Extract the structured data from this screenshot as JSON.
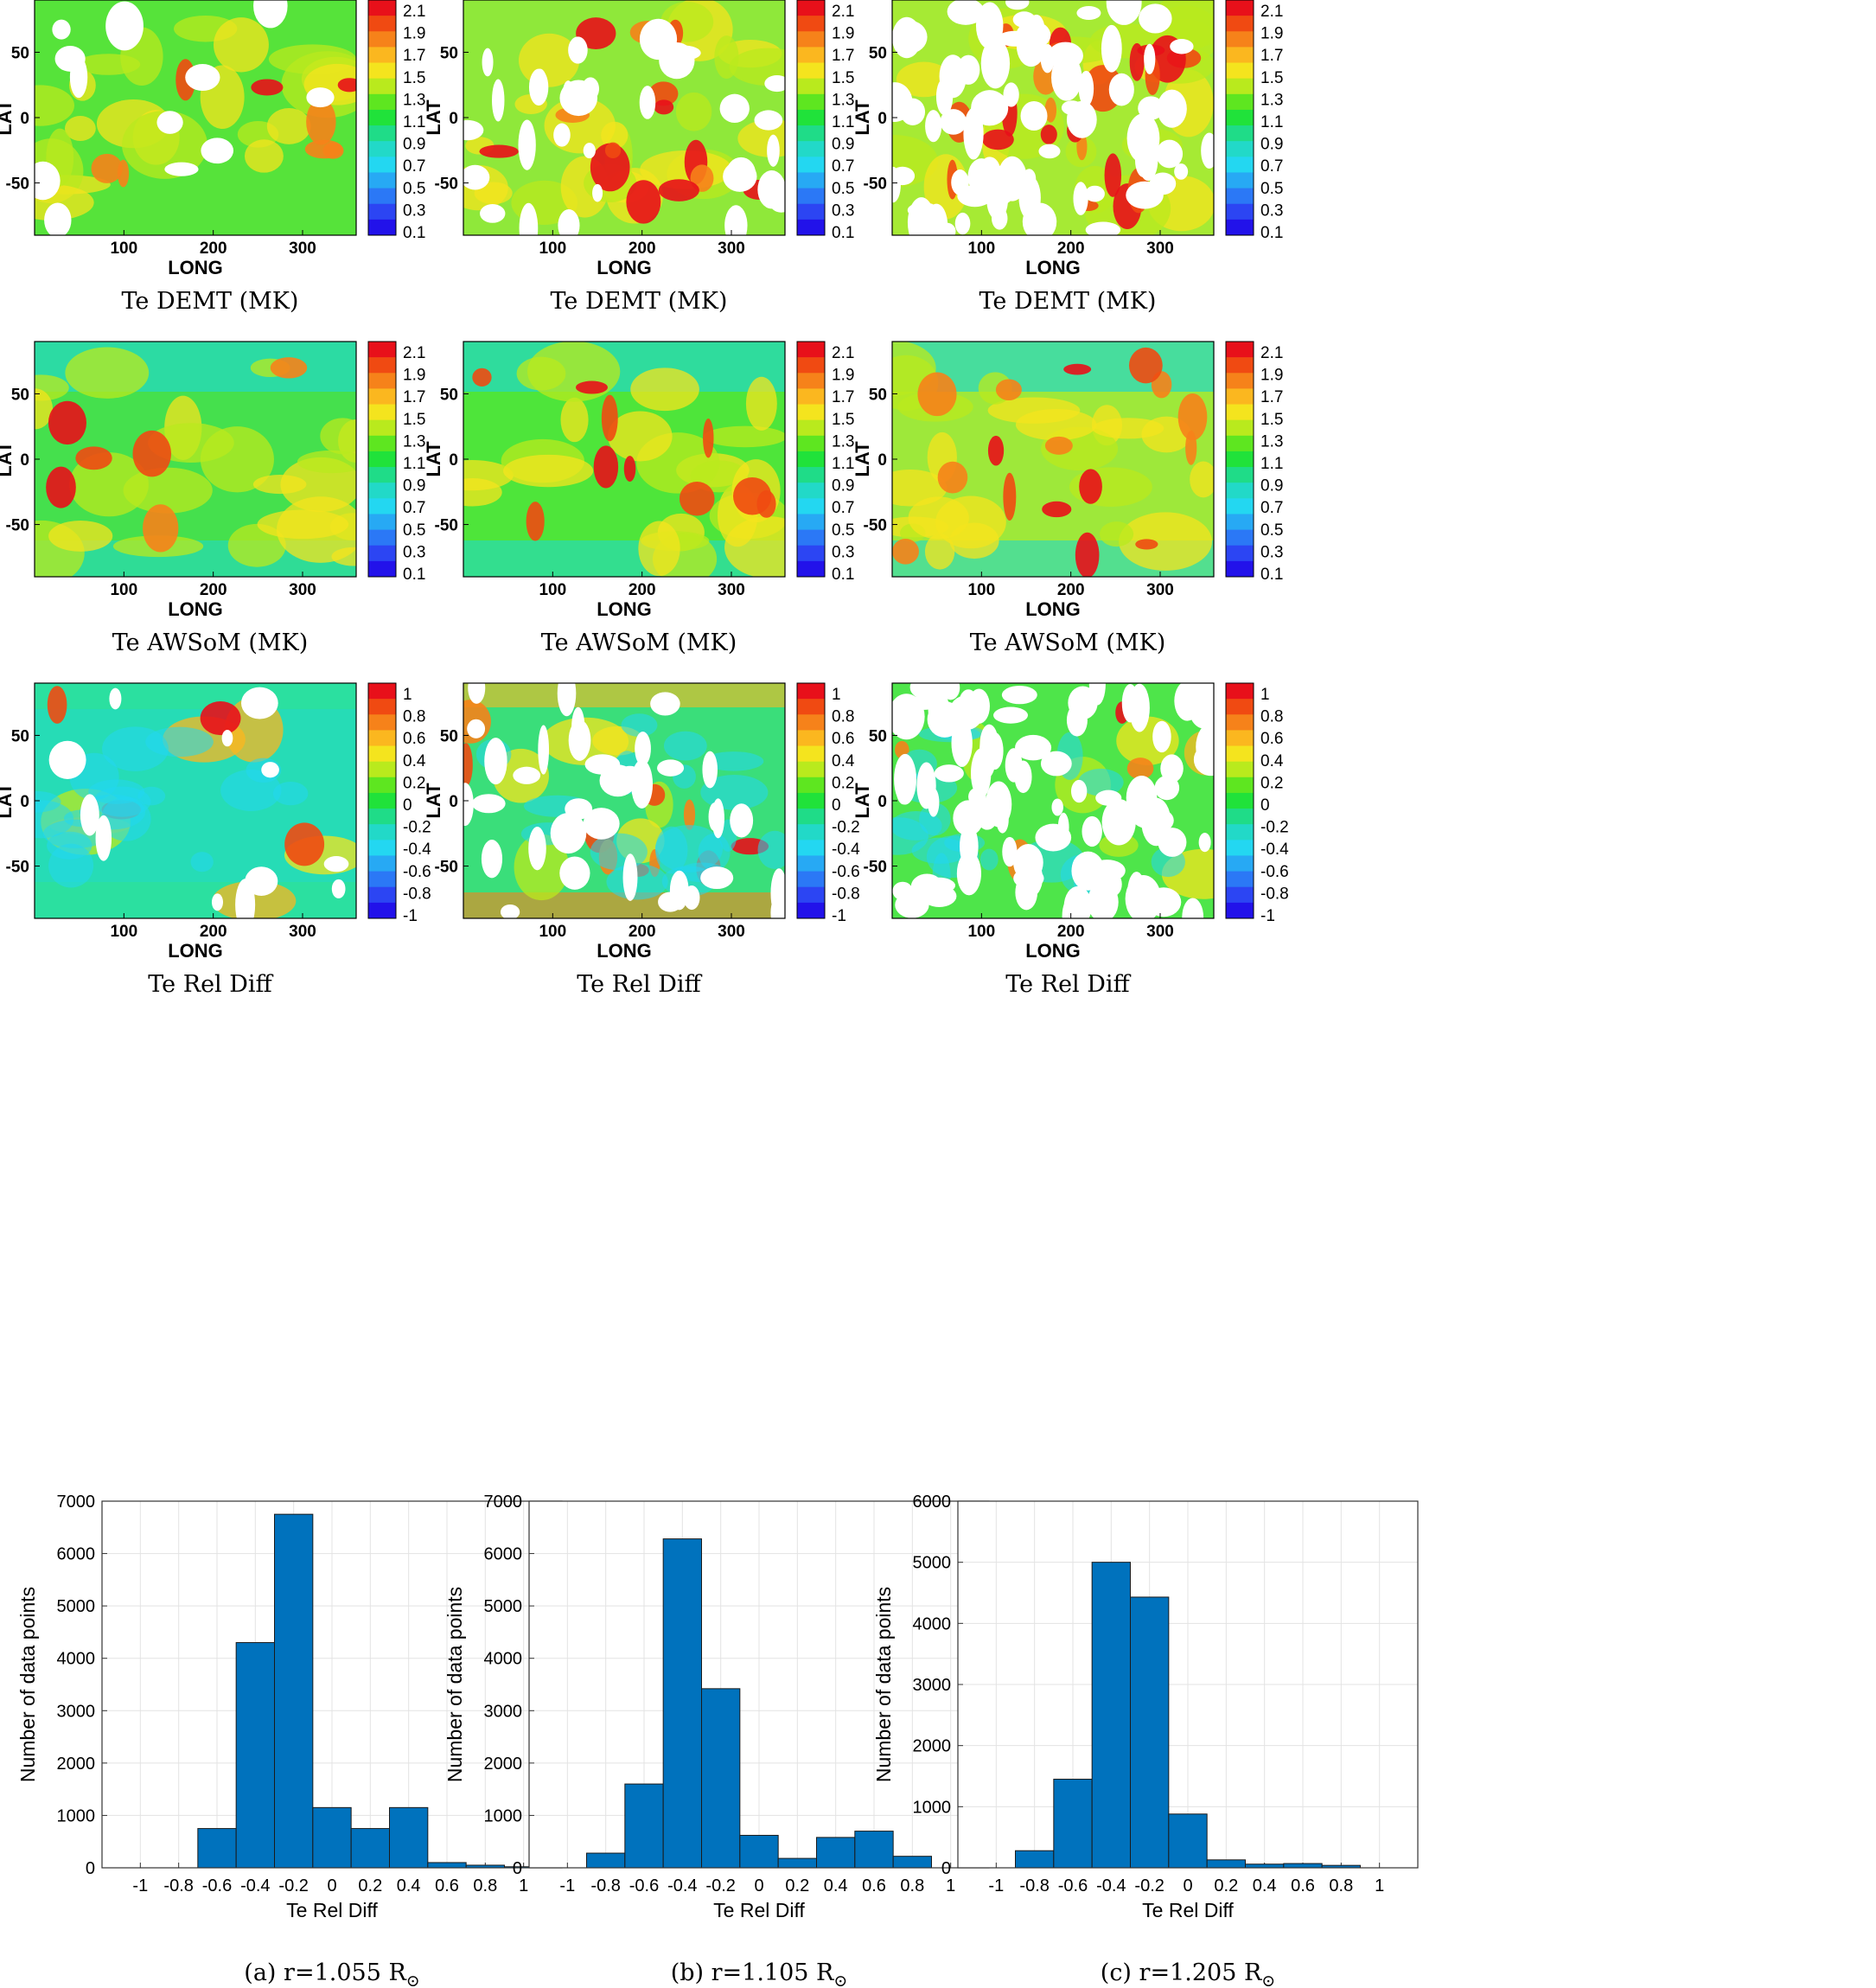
{
  "colorbars": {
    "temperature": {
      "levels": [
        "2.1",
        "1.9",
        "1.7",
        "1.5",
        "1.3",
        "1.1",
        "0.9",
        "0.7",
        "0.5",
        "0.3",
        "0.1"
      ],
      "colors": [
        "#e8101a",
        "#f04a12",
        "#f6821a",
        "#fbb71f",
        "#f4e41e",
        "#b9ea1d",
        "#5ee620",
        "#20e23a",
        "#1fdc88",
        "#22d9c8",
        "#23d7f1",
        "#27a9f4",
        "#2b78f6",
        "#2c45f3",
        "#2212ea"
      ]
    },
    "reldiff": {
      "levels": [
        "1",
        "0.8",
        "0.6",
        "0.4",
        "0.2",
        "0",
        "-0.2",
        "-0.4",
        "-0.6",
        "-0.8",
        "-1"
      ],
      "colors": [
        "#e8101a",
        "#f04a12",
        "#f6821a",
        "#fbb71f",
        "#f4e41e",
        "#b9ea1d",
        "#5ee620",
        "#20e23a",
        "#1fdc88",
        "#22d9c8",
        "#23d7f1",
        "#27a9f4",
        "#2b78f6",
        "#2c45f3",
        "#2212ea"
      ]
    }
  },
  "map_axes": {
    "xlabel": "LONG",
    "ylabel": "LAT",
    "xticks": [
      "100",
      "200",
      "300"
    ],
    "yticks": [
      "50",
      "0",
      "-50"
    ],
    "xlim": [
      0,
      360
    ],
    "ylim": [
      -90,
      90
    ]
  },
  "row_captions": [
    "Te DEMT (MK)",
    "Te AWSoM (MK)",
    "Te Rel Diff"
  ],
  "columns": [
    {
      "caption_pre": "(a) r=1.055 R",
      "sub": "⊙",
      "map_rows": [
        {
          "title": "Te DEMT (MK)",
          "bg": "#56e33a"
        },
        {
          "title": "Te AWSoM (MK)",
          "bg": "#45e04d"
        },
        {
          "title": "Te Rel Diff",
          "bg": "#2be0a0"
        }
      ]
    },
    {
      "caption_pre": "(b) r=1.105 R",
      "sub": "⊙",
      "map_rows": [
        {
          "title": "Te DEMT (MK)",
          "bg": "#8fe83a"
        },
        {
          "title": "Te AWSoM (MK)",
          "bg": "#4ee53a"
        },
        {
          "title": "Te Rel Diff",
          "bg": "#3ade7a"
        }
      ]
    },
    {
      "caption_pre": "(c) r=1.205 R",
      "sub": "⊙",
      "map_rows": [
        {
          "title": "Te DEMT (MK)",
          "bg": "#a6ea34"
        },
        {
          "title": "Te AWSoM (MK)",
          "bg": "#9ee83a"
        },
        {
          "title": "Te Rel Diff",
          "bg": "#4ee54a"
        }
      ]
    }
  ],
  "chart_data": [
    {
      "type": "bar",
      "title": "(a) r=1.055 R⊙",
      "xlabel": "Te Rel Diff",
      "ylabel": "Number of data points",
      "bin_edges": [
        -0.9,
        -0.7,
        -0.5,
        -0.3,
        -0.1,
        0.1,
        0.3,
        0.5,
        0.7,
        0.9,
        1.1
      ],
      "values": [
        0,
        750,
        4300,
        6750,
        1150,
        750,
        1150,
        100,
        50,
        20
      ],
      "xticks": [
        "-1",
        "-0.8",
        "-0.6",
        "-0.4",
        "-0.2",
        "0",
        "0.2",
        "0.4",
        "0.6",
        "0.8",
        "1"
      ],
      "xlim": [
        -1.2,
        1.2
      ],
      "ylim": [
        0,
        7000
      ],
      "yticks": [
        "0",
        "1000",
        "2000",
        "3000",
        "4000",
        "5000",
        "6000",
        "7000"
      ],
      "bar_color": "#0072bd",
      "grid": true
    },
    {
      "type": "bar",
      "title": "(b) r=1.105 R⊙",
      "xlabel": "Te Rel Diff",
      "ylabel": "Number of data points",
      "bin_edges": [
        -0.9,
        -0.7,
        -0.5,
        -0.3,
        -0.1,
        0.1,
        0.3,
        0.5,
        0.7,
        0.9,
        1.1
      ],
      "values": [
        280,
        1600,
        6280,
        3420,
        620,
        180,
        580,
        700,
        220,
        0
      ],
      "xticks": [
        "-1",
        "-0.8",
        "-0.6",
        "-0.4",
        "-0.2",
        "0",
        "0.2",
        "0.4",
        "0.6",
        "0.8",
        "1"
      ],
      "xlim": [
        -1.2,
        1.2
      ],
      "ylim": [
        0,
        7000
      ],
      "yticks": [
        "0",
        "1000",
        "2000",
        "3000",
        "4000",
        "5000",
        "6000",
        "7000"
      ],
      "bar_color": "#0072bd",
      "grid": true
    },
    {
      "type": "bar",
      "title": "(c) r=1.205 R⊙",
      "xlabel": "Te Rel Diff",
      "ylabel": "Number of data points",
      "bin_edges": [
        -0.9,
        -0.7,
        -0.5,
        -0.3,
        -0.1,
        0.1,
        0.3,
        0.5,
        0.7,
        0.9,
        1.1
      ],
      "values": [
        280,
        1450,
        5000,
        4430,
        880,
        130,
        60,
        70,
        40,
        0
      ],
      "xticks": [
        "-1",
        "-0.8",
        "-0.6",
        "-0.4",
        "-0.2",
        "0",
        "0.2",
        "0.4",
        "0.6",
        "0.8",
        "1"
      ],
      "xlim": [
        -1.2,
        1.2
      ],
      "ylim": [
        0,
        6000
      ],
      "yticks": [
        "0",
        "1000",
        "2000",
        "3000",
        "4000",
        "5000",
        "6000"
      ],
      "bar_color": "#0072bd",
      "grid": true
    }
  ]
}
